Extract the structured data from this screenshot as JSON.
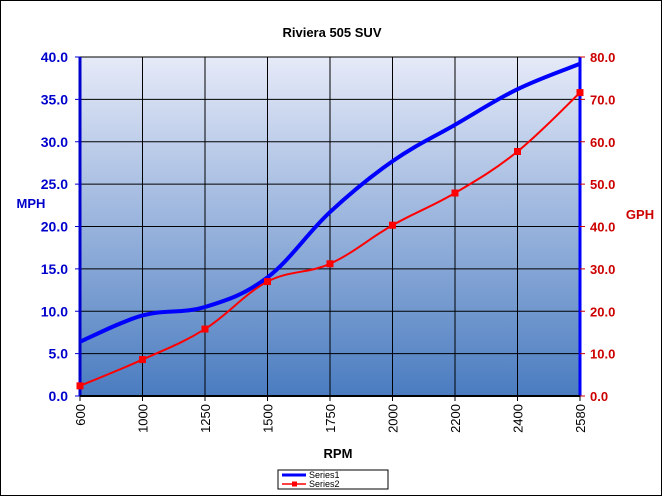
{
  "chart_data": {
    "type": "line",
    "title": "Riviera 505  SUV",
    "xlabel": "RPM",
    "ylabel_left": "MPH",
    "ylabel_right": "GPH",
    "categories": [
      "600",
      "1000",
      "1250",
      "1500",
      "1750",
      "2000",
      "2200",
      "2400",
      "2580"
    ],
    "y_left": {
      "min": 0,
      "max": 40,
      "step": 5,
      "ticks": [
        "0.0",
        "5.0",
        "10.0",
        "15.0",
        "20.0",
        "25.0",
        "30.0",
        "35.0",
        "40.0"
      ]
    },
    "y_right": {
      "min": 0,
      "max": 80,
      "step": 10,
      "ticks": [
        "0.0",
        "10.0",
        "20.0",
        "30.0",
        "40.0",
        "50.0",
        "60.0",
        "70.0",
        "80.0"
      ]
    },
    "grid": true,
    "legend_position": "bottom",
    "series": [
      {
        "name": "Series1",
        "axis": "left",
        "color": "#0000ff",
        "marker": "none",
        "values": [
          6.4,
          9.5,
          10.5,
          14.0,
          21.7,
          27.7,
          32.0,
          36.2,
          39.2
        ]
      },
      {
        "name": "Series2",
        "axis": "right",
        "color": "#ff0000",
        "marker": "square",
        "values": [
          2.4,
          8.6,
          15.8,
          27.0,
          31.2,
          40.3,
          47.9,
          57.7,
          71.6
        ]
      }
    ],
    "colors": {
      "left_axis_text": "#0000cc",
      "right_axis_text": "#cc0000",
      "plot_bg_top": "#e6eaf8",
      "plot_bg_bottom": "#4a7cc0",
      "grid": "#000000"
    }
  }
}
